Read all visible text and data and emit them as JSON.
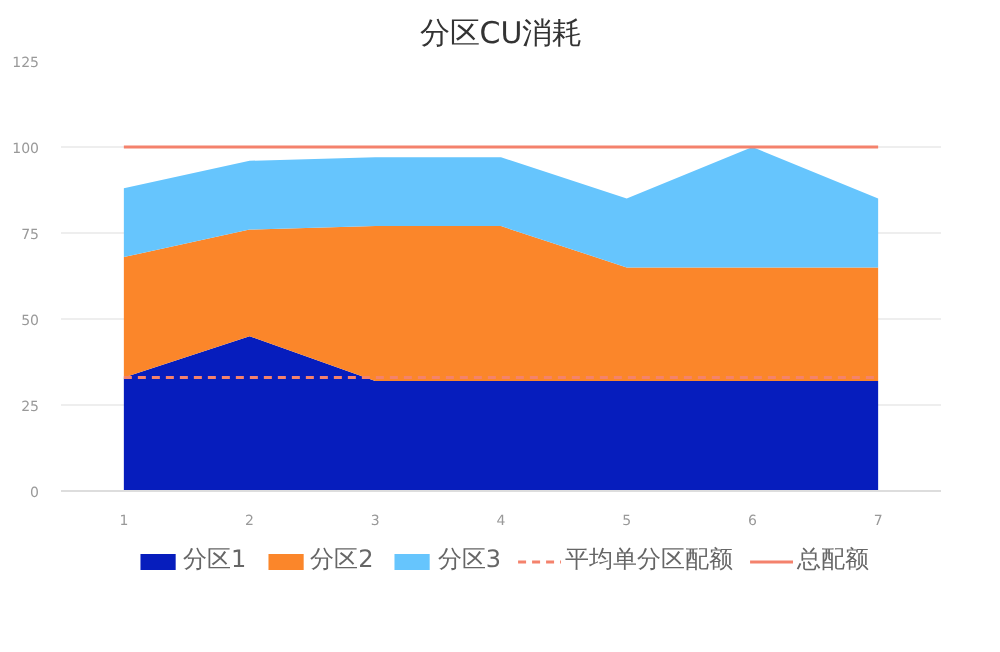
{
  "chart_data": {
    "type": "area",
    "title": "分区CU消耗",
    "stacked": true,
    "x": [
      1,
      2,
      3,
      4,
      5,
      6,
      7
    ],
    "series": [
      {
        "name": "分区1",
        "color": "#061dbd",
        "values": [
          33,
          45,
          32,
          32,
          32,
          32,
          32
        ]
      },
      {
        "name": "分区2",
        "color": "#fb862a",
        "values": [
          35,
          31,
          45,
          45,
          33,
          33,
          33
        ]
      },
      {
        "name": "分区3",
        "color": "#66c5fd",
        "values": [
          20,
          20,
          20,
          20,
          20,
          35,
          20
        ]
      },
      {
        "name": "平均单分区配额",
        "type": "line",
        "line_style": "dashed",
        "color": "#f4826c",
        "values": [
          33,
          33,
          33,
          33,
          33,
          33,
          33
        ]
      },
      {
        "name": "总配额",
        "type": "line",
        "line_style": "solid",
        "color": "#f4826c",
        "values": [
          100,
          100,
          100,
          100,
          100,
          100,
          100
        ]
      }
    ],
    "xlim": [
      0.5,
      7.5
    ],
    "xticks": [
      1,
      2,
      3,
      4,
      5,
      6,
      7
    ],
    "ylim": [
      0,
      125
    ],
    "yticks": [
      0,
      25,
      50,
      75,
      100,
      125
    ],
    "grid": "y",
    "legend": "bottom"
  }
}
